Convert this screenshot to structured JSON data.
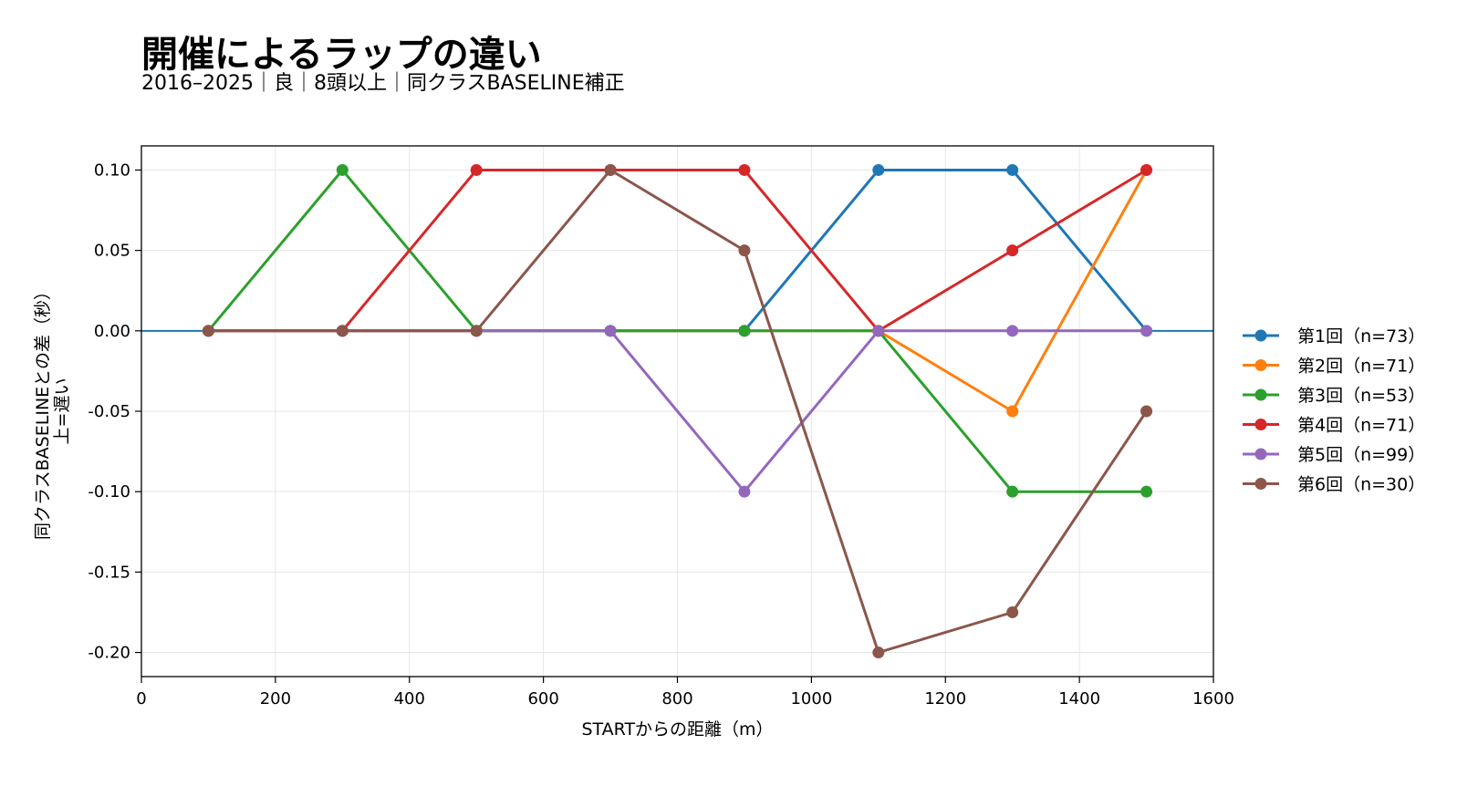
{
  "title": "開催によるラップの違い",
  "subtitle": "2016–2025｜良｜8頭以上｜同クラスBASELINE補正",
  "chart_data": {
    "type": "line",
    "xlabel": "STARTからの距離（m）",
    "ylabel": [
      "同クラスBASELINEとの差（秒）",
      "上=遅い"
    ],
    "xlim": [
      0,
      1600
    ],
    "ylim": [
      -0.215,
      0.115
    ],
    "xticks": [
      0,
      200,
      400,
      600,
      800,
      1000,
      1200,
      1400,
      1600
    ],
    "xtick_labels": [
      "0",
      "200",
      "400",
      "600",
      "800",
      "1000",
      "1200",
      "1400",
      "1600"
    ],
    "yticks": [
      0.1,
      0.05,
      0.0,
      -0.05,
      -0.1,
      -0.15,
      -0.2
    ],
    "ytick_labels": [
      "0.10",
      "0.05",
      "0.00",
      "-0.05",
      "-0.10",
      "-0.15",
      "-0.20"
    ],
    "grid": true,
    "legend_position": "right",
    "reference_line": {
      "y": 0.0,
      "color": "#1f77b4"
    },
    "x": [
      100,
      300,
      500,
      700,
      900,
      1100,
      1300,
      1500
    ],
    "series": [
      {
        "name": "第1回（n=73）",
        "color": "#1f77b4",
        "values": [
          0,
          0,
          0,
          0,
          0,
          0.1,
          0.1,
          0
        ]
      },
      {
        "name": "第2回（n=71）",
        "color": "#ff7f0e",
        "values": [
          0,
          0,
          0,
          0,
          0,
          0,
          -0.05,
          0.1
        ]
      },
      {
        "name": "第3回（n=53）",
        "color": "#2ca02c",
        "values": [
          0,
          0.1,
          0,
          0,
          0,
          0,
          -0.1,
          -0.1
        ]
      },
      {
        "name": "第4回（n=71）",
        "color": "#d62728",
        "values": [
          0,
          0,
          0.1,
          0.1,
          0.1,
          0,
          0.05,
          0.1
        ]
      },
      {
        "name": "第5回（n=99）",
        "color": "#9467bd",
        "values": [
          0,
          0,
          0,
          0,
          -0.1,
          0,
          0,
          0
        ]
      },
      {
        "name": "第6回（n=30）",
        "color": "#8c564b",
        "values": [
          0,
          0,
          0,
          0.1,
          0.05,
          -0.2,
          -0.175,
          -0.05
        ]
      }
    ]
  }
}
